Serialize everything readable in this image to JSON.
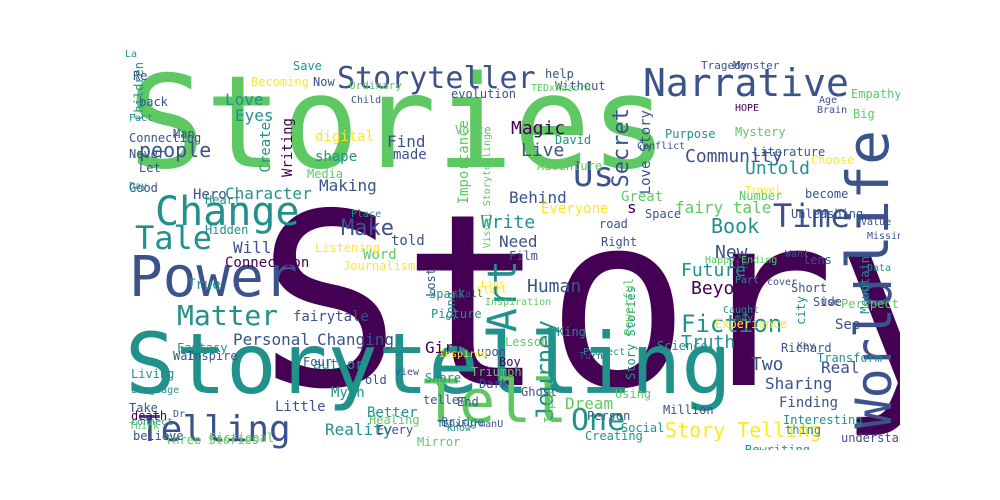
{
  "colors": {
    "c1": "#440154",
    "c2": "#3b528b",
    "c3": "#21918c",
    "c4": "#5ec962",
    "c5": "#fde725"
  },
  "words": [
    {
      "t": "Story",
      "c": "c1"
    },
    {
      "t": "Stories",
      "c": "c4"
    },
    {
      "t": "Storytelling",
      "c": "c3"
    },
    {
      "t": "Power",
      "c": "c2"
    },
    {
      "t": "Narrative",
      "c": "c2"
    },
    {
      "t": "Storyteller",
      "c": "c2"
    },
    {
      "t": "Tell",
      "c": "c4"
    },
    {
      "t": "life",
      "c": "c2"
    },
    {
      "t": "World",
      "c": "c2"
    },
    {
      "t": "Change",
      "c": "c3"
    },
    {
      "t": "Telling",
      "c": "c2"
    },
    {
      "t": "Tale",
      "c": "c3"
    },
    {
      "t": "Time",
      "c": "c2"
    },
    {
      "t": "Us",
      "c": "c2"
    },
    {
      "t": "Art",
      "c": "c3"
    },
    {
      "t": "Matter",
      "c": "c3"
    },
    {
      "t": "Story Telling",
      "c": "c5"
    },
    {
      "t": "Fiction",
      "c": "c3"
    },
    {
      "t": "Journey",
      "c": "c3"
    },
    {
      "t": "One",
      "c": "c3"
    },
    {
      "t": "Make",
      "c": "c2"
    },
    {
      "t": "Love",
      "c": "c3"
    },
    {
      "t": "Eyes",
      "c": "c3"
    },
    {
      "t": "people",
      "c": "c2"
    },
    {
      "t": "Magic",
      "c": "c1"
    },
    {
      "t": "Live",
      "c": "c2"
    },
    {
      "t": "Secret",
      "c": "c2"
    },
    {
      "t": "Community",
      "c": "c2"
    },
    {
      "t": "Untold",
      "c": "c3"
    },
    {
      "t": "Love Story",
      "c": "c2"
    },
    {
      "t": "Book",
      "c": "c3"
    },
    {
      "t": "fairy tale",
      "c": "c4"
    },
    {
      "t": "Write",
      "c": "c3"
    },
    {
      "t": "Need",
      "c": "c2"
    },
    {
      "t": "Behind",
      "c": "c2"
    },
    {
      "t": "Importance",
      "c": "c4"
    },
    {
      "t": "Character",
      "c": "c3"
    },
    {
      "t": "Hero",
      "c": "c2"
    },
    {
      "t": "Making",
      "c": "c2"
    },
    {
      "t": "Writing",
      "c": "c1"
    },
    {
      "t": "Create",
      "c": "c3"
    },
    {
      "t": "digital",
      "c": "c5"
    },
    {
      "t": "shape",
      "c": "c3"
    },
    {
      "t": "Find",
      "c": "c2"
    },
    {
      "t": "made",
      "c": "c2"
    },
    {
      "t": "Future",
      "c": "c3"
    },
    {
      "t": "Beyond",
      "c": "c1"
    },
    {
      "t": "New",
      "c": "c2"
    },
    {
      "t": "Human",
      "c": "c2"
    },
    {
      "t": "Truth",
      "c": "c3"
    },
    {
      "t": "Two",
      "c": "c2"
    },
    {
      "t": "Real",
      "c": "c2"
    },
    {
      "t": "Sharing",
      "c": "c2"
    },
    {
      "t": "Finding",
      "c": "c2"
    },
    {
      "t": "Dream",
      "c": "c4"
    },
    {
      "t": "Personal",
      "c": "c2"
    },
    {
      "t": "Changing",
      "c": "c2"
    },
    {
      "t": "Girl",
      "c": "c1"
    },
    {
      "t": "Reality",
      "c": "c3"
    },
    {
      "t": "Little",
      "c": "c2"
    },
    {
      "t": "Connection",
      "c": "c1"
    },
    {
      "t": "Will",
      "c": "c2"
    },
    {
      "t": "told",
      "c": "c2"
    },
    {
      "t": "Everyone",
      "c": "c5"
    },
    {
      "t": "Great",
      "c": "c4"
    },
    {
      "t": "Word",
      "c": "c4"
    },
    {
      "t": "True",
      "c": "c3"
    },
    {
      "t": "fairytale",
      "c": "c2"
    },
    {
      "t": "author",
      "c": "c3"
    },
    {
      "t": "Myth",
      "c": "c3"
    },
    {
      "t": "Better",
      "c": "c3"
    },
    {
      "t": "Impact",
      "c": "c4"
    },
    {
      "t": "Ghost",
      "c": "c2"
    },
    {
      "t": "End",
      "c": "c2"
    },
    {
      "t": "Experience",
      "c": "c5"
    },
    {
      "t": "See",
      "c": "c2"
    },
    {
      "t": "Children",
      "c": "c3"
    },
    {
      "t": "Save",
      "c": "c3"
    },
    {
      "t": "Now",
      "c": "c2"
    },
    {
      "t": "Re",
      "c": "c2"
    },
    {
      "t": "Man",
      "c": "c2"
    },
    {
      "t": "Good",
      "c": "c2"
    },
    {
      "t": "Let",
      "c": "c2"
    },
    {
      "t": "s",
      "c": "c1"
    },
    {
      "t": "Without",
      "c": "c2"
    },
    {
      "t": "Voice",
      "c": "c4"
    },
    {
      "t": "David",
      "c": "c3"
    },
    {
      "t": "Tragedy",
      "c": "c2"
    },
    {
      "t": "Monster",
      "c": "c2"
    },
    {
      "t": "HOPE",
      "c": "c1"
    },
    {
      "t": "lens",
      "c": "c2"
    },
    {
      "t": "Short",
      "c": "c2"
    },
    {
      "t": "Side",
      "c": "c2"
    },
    {
      "t": "Richard",
      "c": "c2"
    },
    {
      "t": "King",
      "c": "c3"
    },
    {
      "t": "Boy",
      "c": "c1"
    },
    {
      "t": "Lost",
      "c": "c2"
    },
    {
      "t": "War",
      "c": "c2"
    },
    {
      "t": "Living",
      "c": "c3"
    },
    {
      "t": "death",
      "c": "c1"
    },
    {
      "t": "Every",
      "c": "c2"
    },
    {
      "t": "Fictional",
      "c": "c4"
    },
    {
      "t": "Three Stories",
      "c": "c4"
    },
    {
      "t": "Creating",
      "c": "c3"
    },
    {
      "t": "Million",
      "c": "c2"
    },
    {
      "t": "Interesting",
      "c": "c3"
    },
    {
      "t": "thing",
      "c": "c3"
    },
    {
      "t": "Share",
      "c": "c3"
    },
    {
      "t": "Listening",
      "c": "c5"
    },
    {
      "t": "Journalism",
      "c": "c5"
    },
    {
      "t": "Hidden",
      "c": "c3"
    },
    {
      "t": "Heart",
      "c": "c3"
    },
    {
      "t": "Becoming",
      "c": "c5"
    },
    {
      "t": "Ordinary",
      "c": "c4"
    },
    {
      "t": "Child",
      "c": "c2"
    },
    {
      "t": "evolution",
      "c": "c2"
    },
    {
      "t": "help",
      "c": "c2"
    },
    {
      "t": "Empathy",
      "c": "c4"
    },
    {
      "t": "Big",
      "c": "c4"
    },
    {
      "t": "Age",
      "c": "c2"
    },
    {
      "t": "Brain",
      "c": "c2"
    },
    {
      "t": "Choose",
      "c": "c5"
    },
    {
      "t": "become",
      "c": "c2"
    },
    {
      "t": "Unleashing",
      "c": "c2"
    },
    {
      "t": "Value",
      "c": "c2"
    },
    {
      "t": "Missing",
      "c": "c2"
    },
    {
      "t": "Mountain",
      "c": "c3"
    },
    {
      "t": "Data",
      "c": "c3"
    },
    {
      "t": "Perspective",
      "c": "c4"
    },
    {
      "t": "city",
      "c": "c3"
    },
    {
      "t": "Transform",
      "c": "c3"
    },
    {
      "t": "Story Stories",
      "c": "c3"
    },
    {
      "t": "Powerful",
      "c": "c4"
    },
    {
      "t": "Science",
      "c": "c3"
    },
    {
      "t": "Film",
      "c": "c2"
    },
    {
      "t": "Adventure",
      "c": "c4"
    },
    {
      "t": "Number",
      "c": "c4"
    },
    {
      "t": "Mystery",
      "c": "c4"
    },
    {
      "t": "Literature",
      "c": "c2"
    },
    {
      "t": "Purpose",
      "c": "c3"
    },
    {
      "t": "Conflict",
      "c": "c2"
    },
    {
      "t": "Space",
      "c": "c2"
    },
    {
      "t": "road",
      "c": "c2"
    },
    {
      "t": "Right",
      "c": "c2"
    },
    {
      "t": "lie",
      "c": "c2"
    },
    {
      "t": "Spark",
      "c": "c3"
    },
    {
      "t": "Picture",
      "c": "c3"
    },
    {
      "t": "Song",
      "c": "c3"
    },
    {
      "t": "Lesson",
      "c": "c4"
    },
    {
      "t": "upon",
      "c": "c2"
    },
    {
      "t": "Triumph",
      "c": "c4"
    },
    {
      "t": "Dark",
      "c": "c2"
    },
    {
      "t": "teller",
      "c": "c2"
    },
    {
      "t": "old",
      "c": "c2"
    },
    {
      "t": "Using",
      "c": "c4"
    },
    {
      "t": "Person",
      "c": "c2"
    },
    {
      "t": "Social",
      "c": "c3"
    },
    {
      "t": "Bridge",
      "c": "c3"
    },
    {
      "t": "Healing",
      "c": "c4"
    },
    {
      "t": "Mirror",
      "c": "c4"
    },
    {
      "t": "Rewriting",
      "c": "c3"
    },
    {
      "t": "understanding",
      "c": "c2"
    },
    {
      "t": "connect",
      "c": "c3"
    },
    {
      "t": "Language",
      "c": "c3"
    },
    {
      "t": "Fantasy",
      "c": "c3"
    },
    {
      "t": "Inspire",
      "c": "c2"
    },
    {
      "t": "believe",
      "c": "c2"
    },
    {
      "t": "Take",
      "c": "c2"
    },
    {
      "t": "Four",
      "c": "c2"
    },
    {
      "t": "Day",
      "c": "c3"
    },
    {
      "t": "Never",
      "c": "c2"
    },
    {
      "t": "Connecting",
      "c": "c2"
    },
    {
      "t": "back",
      "c": "c2"
    },
    {
      "t": "Fact",
      "c": "c3"
    },
    {
      "t": "Know",
      "c": "c3"
    },
    {
      "t": "Call",
      "c": "c2"
    },
    {
      "t": "Turn",
      "c": "c2"
    },
    {
      "t": "Project",
      "c": "c3"
    },
    {
      "t": "Happy Ending",
      "c": "c4"
    },
    {
      "t": "cover",
      "c": "c2"
    },
    {
      "t": "Part",
      "c": "c3"
    },
    {
      "t": "Want",
      "c": "c2"
    },
    {
      "t": "Caught",
      "c": "c3"
    },
    {
      "t": "Key",
      "c": "c2"
    },
    {
      "t": "may",
      "c": "c3"
    },
    {
      "t": "Use",
      "c": "c2"
    },
    {
      "t": "Travel",
      "c": "c5"
    },
    {
      "t": "Media",
      "c": "c4"
    },
    {
      "t": "Visual Storytelling",
      "c": "c4"
    },
    {
      "t": "TEDxRazorn",
      "c": "c4"
    },
    {
      "t": "TEDxFurmanU",
      "c": "c2"
    },
    {
      "t": "Inspired",
      "c": "c5"
    },
    {
      "t": "Inspiration",
      "c": "c4"
    },
    {
      "t": "Start",
      "c": "c5"
    },
    {
      "t": "Dr",
      "c": "c2"
    },
    {
      "t": "view",
      "c": "c2"
    },
    {
      "t": "Lies",
      "c": "c5"
    },
    {
      "t": "Place",
      "c": "c3"
    },
    {
      "t": "Think",
      "c": "c4"
    },
    {
      "t": "La",
      "c": "c3"
    }
  ]
}
